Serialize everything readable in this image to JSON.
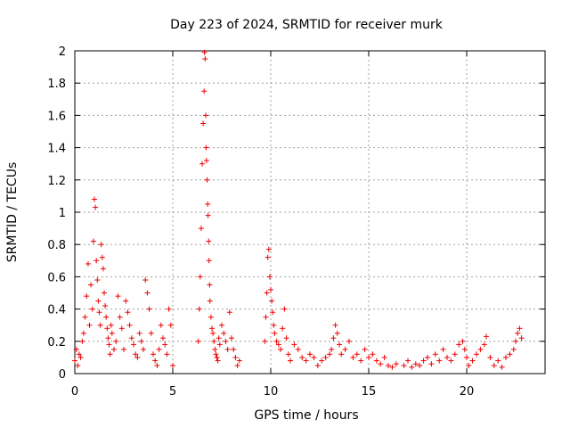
{
  "chart_data": {
    "type": "scatter",
    "title": "Day 223 of 2024, SRMTID for receiver murk",
    "xlabel": "GPS time / hours",
    "ylabel": "SRMTID / TECUs",
    "xlim": [
      0,
      24
    ],
    "ylim": [
      0,
      2
    ],
    "grid": true,
    "marker": "+",
    "marker_color": "#ee0000",
    "x_ticks": [
      0,
      5,
      10,
      15,
      20
    ],
    "x_tick_labels": [
      "0",
      "5",
      "10",
      "15",
      "20"
    ],
    "y_ticks": [
      0,
      0.2,
      0.4,
      0.6,
      0.8,
      1,
      1.2,
      1.4,
      1.6,
      1.8,
      2
    ],
    "y_tick_labels": [
      "0",
      "0.2",
      "0.4",
      "0.6",
      "0.8",
      "1",
      "1.2",
      "1.4",
      "1.6",
      "1.8",
      "2"
    ],
    "series": [
      {
        "name": "SRMTID",
        "x": [
          0.0,
          0.08,
          0.15,
          0.22,
          0.3,
          0.38,
          0.45,
          0.52,
          0.6,
          0.68,
          0.75,
          0.82,
          0.9,
          0.95,
          1.0,
          1.05,
          1.1,
          1.15,
          1.2,
          1.25,
          1.3,
          1.35,
          1.4,
          1.45,
          1.5,
          1.55,
          1.6,
          1.65,
          1.7,
          1.75,
          1.8,
          1.85,
          1.9,
          2.0,
          2.1,
          2.2,
          2.3,
          2.4,
          2.5,
          2.6,
          2.7,
          2.8,
          2.9,
          3.0,
          3.1,
          3.2,
          3.3,
          3.4,
          3.5,
          3.6,
          3.7,
          3.8,
          3.9,
          4.0,
          4.1,
          4.2,
          4.3,
          4.4,
          4.5,
          4.6,
          4.7,
          4.8,
          4.9,
          5.0,
          6.3,
          6.35,
          6.4,
          6.45,
          6.5,
          6.55,
          6.6,
          6.62,
          6.65,
          6.68,
          6.7,
          6.72,
          6.75,
          6.78,
          6.8,
          6.83,
          6.85,
          6.88,
          6.9,
          6.95,
          7.0,
          7.05,
          7.1,
          7.15,
          7.2,
          7.25,
          7.3,
          7.35,
          7.4,
          7.5,
          7.6,
          7.7,
          7.8,
          7.9,
          8.0,
          8.1,
          8.2,
          8.3,
          8.4,
          9.7,
          9.75,
          9.8,
          9.85,
          9.9,
          9.95,
          10.0,
          10.05,
          10.1,
          10.15,
          10.2,
          10.3,
          10.4,
          10.5,
          10.6,
          10.7,
          10.8,
          10.9,
          11.0,
          11.2,
          11.4,
          11.6,
          11.8,
          12.0,
          12.2,
          12.4,
          12.6,
          12.8,
          13.0,
          13.1,
          13.2,
          13.3,
          13.4,
          13.5,
          13.6,
          13.8,
          14.0,
          14.2,
          14.4,
          14.6,
          14.8,
          15.0,
          15.2,
          15.4,
          15.6,
          15.8,
          16.0,
          16.2,
          16.4,
          16.8,
          17.0,
          17.2,
          17.4,
          17.6,
          17.8,
          18.0,
          18.2,
          18.4,
          18.6,
          18.8,
          19.0,
          19.2,
          19.4,
          19.6,
          19.8,
          19.9,
          20.0,
          20.1,
          20.3,
          20.5,
          20.7,
          20.9,
          21.0,
          21.2,
          21.4,
          21.6,
          21.8,
          22.0,
          22.2,
          22.4,
          22.5,
          22.6,
          22.7,
          22.8
        ],
        "y": [
          0.08,
          0.15,
          0.05,
          0.12,
          0.1,
          0.2,
          0.25,
          0.35,
          0.48,
          0.68,
          0.3,
          0.55,
          0.4,
          0.82,
          1.08,
          1.03,
          0.7,
          0.58,
          0.45,
          0.38,
          0.3,
          0.8,
          0.72,
          0.65,
          0.5,
          0.42,
          0.35,
          0.28,
          0.22,
          0.18,
          0.12,
          0.3,
          0.25,
          0.15,
          0.2,
          0.48,
          0.35,
          0.28,
          0.15,
          0.45,
          0.38,
          0.3,
          0.22,
          0.18,
          0.12,
          0.1,
          0.25,
          0.2,
          0.15,
          0.58,
          0.5,
          0.4,
          0.25,
          0.12,
          0.08,
          0.05,
          0.15,
          0.3,
          0.22,
          0.18,
          0.12,
          0.4,
          0.3,
          0.05,
          0.2,
          0.4,
          0.6,
          0.9,
          1.3,
          1.55,
          1.75,
          1.99,
          1.95,
          1.6,
          1.4,
          1.32,
          1.2,
          1.05,
          0.98,
          0.82,
          0.7,
          0.55,
          0.45,
          0.35,
          0.28,
          0.25,
          0.2,
          0.15,
          0.12,
          0.1,
          0.08,
          0.22,
          0.18,
          0.3,
          0.25,
          0.2,
          0.15,
          0.38,
          0.22,
          0.15,
          0.1,
          0.05,
          0.08,
          0.2,
          0.35,
          0.5,
          0.72,
          0.77,
          0.6,
          0.52,
          0.45,
          0.38,
          0.3,
          0.25,
          0.2,
          0.18,
          0.15,
          0.28,
          0.4,
          0.22,
          0.12,
          0.08,
          0.18,
          0.15,
          0.1,
          0.08,
          0.12,
          0.1,
          0.05,
          0.08,
          0.1,
          0.12,
          0.15,
          0.22,
          0.3,
          0.25,
          0.18,
          0.12,
          0.15,
          0.2,
          0.1,
          0.12,
          0.08,
          0.15,
          0.1,
          0.12,
          0.08,
          0.06,
          0.1,
          0.05,
          0.04,
          0.06,
          0.05,
          0.08,
          0.04,
          0.06,
          0.05,
          0.08,
          0.1,
          0.06,
          0.12,
          0.08,
          0.15,
          0.1,
          0.08,
          0.12,
          0.18,
          0.2,
          0.15,
          0.1,
          0.05,
          0.08,
          0.12,
          0.15,
          0.18,
          0.23,
          0.1,
          0.05,
          0.08,
          0.04,
          0.1,
          0.12,
          0.15,
          0.2,
          0.25,
          0.28,
          0.22
        ]
      }
    ]
  }
}
